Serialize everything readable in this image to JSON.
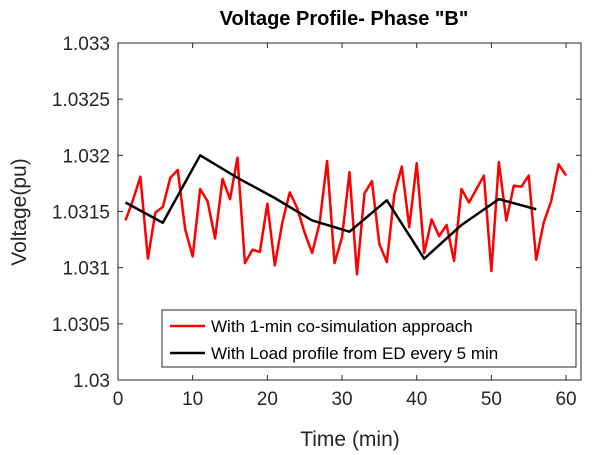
{
  "chart_data": {
    "type": "line",
    "title": "Voltage Profile- Phase \"B\"",
    "xlabel": "Time (min)",
    "ylabel": "Voltage(pu)",
    "xlim": [
      0,
      62
    ],
    "ylim": [
      1.03,
      1.033
    ],
    "xticks": [
      0,
      10,
      20,
      30,
      40,
      50,
      60
    ],
    "yticks": [
      1.03,
      1.0305,
      1.031,
      1.0315,
      1.032,
      1.0325,
      1.033
    ],
    "xtick_labels": [
      "0",
      "10",
      "20",
      "30",
      "40",
      "50",
      "60"
    ],
    "ytick_labels": [
      "1.03",
      "1.0305",
      "1.031",
      "1.0315",
      "1.032",
      "1.0325",
      "1.033"
    ],
    "grid": false,
    "legend_position": "bottom-right",
    "series": [
      {
        "name": "With 1-min co-simulation approach",
        "color": "#ff0000",
        "x": [
          1,
          2,
          3,
          4,
          5,
          6,
          7,
          8,
          9,
          10,
          11,
          12,
          13,
          14,
          15,
          16,
          17,
          18,
          19,
          20,
          21,
          22,
          23,
          24,
          25,
          26,
          27,
          28,
          29,
          30,
          31,
          32,
          33,
          34,
          35,
          36,
          37,
          38,
          39,
          40,
          41,
          42,
          43,
          44,
          45,
          46,
          47,
          48,
          49,
          50,
          51,
          52,
          53,
          54,
          55,
          56,
          57,
          58,
          59,
          60
        ],
        "y": [
          1.03142,
          1.0316,
          1.03181,
          1.03108,
          1.03149,
          1.03154,
          1.0318,
          1.03187,
          1.03134,
          1.0311,
          1.0317,
          1.03159,
          1.03126,
          1.03179,
          1.03161,
          1.03198,
          1.03104,
          1.03116,
          1.03114,
          1.03157,
          1.03102,
          1.0314,
          1.03167,
          1.03153,
          1.03131,
          1.03113,
          1.0314,
          1.03195,
          1.03104,
          1.03127,
          1.03185,
          1.03094,
          1.03166,
          1.03177,
          1.03121,
          1.03105,
          1.03165,
          1.0319,
          1.03136,
          1.03193,
          1.03113,
          1.03143,
          1.03128,
          1.03138,
          1.03106,
          1.0317,
          1.03158,
          1.0317,
          1.03182,
          1.03097,
          1.03194,
          1.03142,
          1.03173,
          1.03172,
          1.03182,
          1.03107,
          1.0314,
          1.03159,
          1.03192,
          1.03182
        ]
      },
      {
        "name": "With Load profile from ED every 5 min",
        "color": "#000000",
        "x": [
          1,
          6,
          11,
          16,
          21,
          26,
          31,
          36,
          41,
          46,
          51,
          56
        ],
        "y": [
          1.03158,
          1.0314,
          1.032,
          1.0318,
          1.03162,
          1.03142,
          1.03132,
          1.0316,
          1.03108,
          1.03138,
          1.03161,
          1.03152
        ]
      }
    ]
  }
}
